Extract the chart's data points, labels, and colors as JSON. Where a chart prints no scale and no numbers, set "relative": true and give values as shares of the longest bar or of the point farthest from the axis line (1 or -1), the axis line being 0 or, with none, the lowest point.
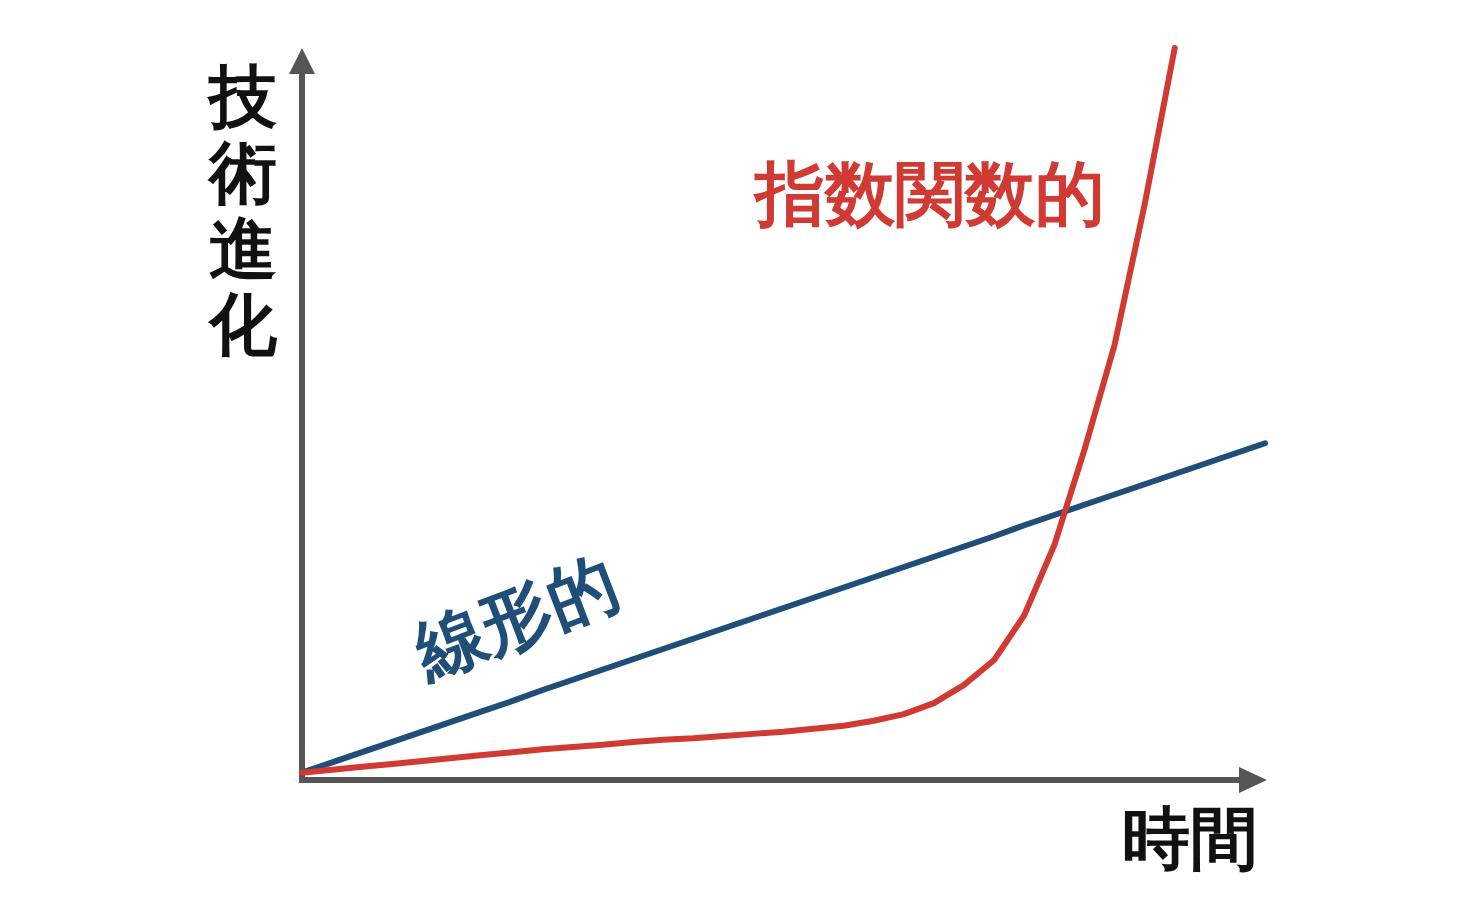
{
  "chart_data": {
    "type": "line",
    "relative": true,
    "xlabel": "時間",
    "ylabel": "技術進化",
    "marker": "none",
    "line_style": "solid",
    "categories": [
      null,
      null,
      null,
      null,
      null,
      null,
      null,
      null,
      null,
      null,
      null,
      null,
      null,
      null,
      null,
      null,
      null,
      null,
      null,
      null,
      null,
      null,
      null,
      null,
      null,
      null,
      null,
      null,
      null,
      null,
      null,
      null,
      null
    ],
    "series": [
      {
        "name": "線形的",
        "color": "#1f4e79",
        "values": [
          0.01,
          0.024,
          0.038,
          0.052,
          0.066,
          0.08,
          0.094,
          0.108,
          0.123,
          0.137,
          0.151,
          0.165,
          0.179,
          0.193,
          0.207,
          0.221,
          0.235,
          0.249,
          0.263,
          0.277,
          0.291,
          0.305,
          0.319,
          0.333,
          0.348,
          0.362,
          0.376,
          0.39,
          0.404,
          0.418,
          0.432,
          0.446,
          0.46
        ]
      },
      {
        "name": "指数関数的",
        "color": "#d03a32",
        "values": [
          0.01,
          0.014,
          0.018,
          0.022,
          0.026,
          0.03,
          0.034,
          0.038,
          0.042,
          0.045,
          0.048,
          0.052,
          0.055,
          0.057,
          0.06,
          0.063,
          0.066,
          0.07,
          0.074,
          0.081,
          0.09,
          0.105,
          0.13,
          0.164,
          0.225,
          0.321,
          0.451,
          0.594,
          0.786,
          1.0,
          null,
          null,
          null
        ]
      }
    ]
  }
}
